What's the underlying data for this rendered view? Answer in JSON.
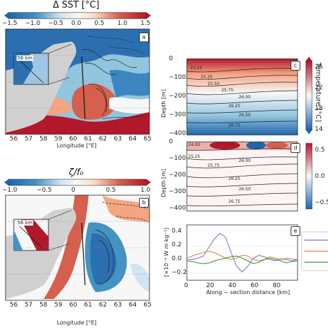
{
  "panel_a": {
    "colorbar_title": "Δ SST [°C]",
    "colorbar_ticks": [
      "−1.5",
      "−1.0",
      "−0.5",
      "0.0",
      "0.5",
      "1.0",
      "1.5"
    ],
    "label": "a",
    "inset_label": "56 km",
    "x_ticks": [
      "56",
      "57",
      "58",
      "59",
      "60",
      "61",
      "62",
      "63",
      "64",
      "65"
    ],
    "xlabel": "Longitude [°E]"
  },
  "panel_b": {
    "colorbar_title": "ζ/f₀",
    "colorbar_ticks": [
      "−1.0",
      "−0.5",
      "0",
      "0.5",
      "1.0"
    ],
    "label": "b",
    "inset_label": "56 km",
    "x_ticks": [
      "56",
      "57",
      "58",
      "59",
      "60",
      "61",
      "62",
      "63",
      "64",
      "65"
    ],
    "xlabel": "Longitude [°E]"
  },
  "panel_c": {
    "label": "c",
    "ylabel": "Depth [m]",
    "y_ticks": [
      "0",
      "−100",
      "−200",
      "−300",
      "−400"
    ],
    "colorbar_ticks": [
      "26",
      "22",
      "18",
      "14"
    ],
    "colorbar_label": "Temperature [°C]",
    "contour_labels": [
      "25.25",
      "25.50",
      "25.75",
      "26.00",
      "26.25",
      "26.50",
      "26.75",
      "23.25"
    ]
  },
  "panel_d": {
    "label": "d",
    "ylabel": "Depth [m]",
    "y_ticks": [
      "0",
      "−100",
      "−200",
      "−300",
      "−400"
    ],
    "colorbar_ticks": [
      "0.5",
      "0.0",
      "−0.5"
    ],
    "contour_labels": [
      "24.00",
      "25.25",
      "25.75",
      "26.00",
      "26.25",
      "26.50",
      "26.75"
    ]
  },
  "panel_e": {
    "label": "e",
    "ylabel": "[×10⁻⁴ W m kg⁻¹]",
    "y_ticks": [
      "0.4",
      "0.2",
      "0.0",
      "−0.2"
    ],
    "x_ticks": [
      "0",
      "20",
      "40",
      "60",
      "80"
    ],
    "xlabel": "Along − section distance [km]"
  },
  "colors": {
    "red": "#b2182b",
    "blue": "#2166ac",
    "series_blue": "#6f6fd0",
    "series_orange": "#e0803a",
    "series_green": "#3a8a4a"
  },
  "chart_data": {
    "type": "line",
    "x": [
      0,
      5,
      10,
      15,
      20,
      25,
      30,
      35,
      40,
      45,
      50,
      55,
      60,
      65,
      70,
      75,
      80,
      85,
      90,
      95,
      100
    ],
    "xlim": [
      0,
      100
    ],
    "ylim": [
      -0.3,
      0.5
    ],
    "series": [
      {
        "values": [
          0.0,
          0.0,
          0.02,
          0.05,
          0.18,
          0.3,
          0.38,
          0.32,
          0.1,
          -0.1,
          -0.18,
          -0.1,
          0.02,
          0.06,
          0.04,
          0.0,
          -0.02,
          0.01,
          0.0,
          -0.02,
          0.0
        ]
      },
      {
        "values": [
          0.02,
          0.05,
          0.08,
          0.1,
          0.12,
          0.1,
          0.06,
          0.02,
          0.0,
          0.02,
          0.06,
          0.05,
          0.0,
          -0.02,
          0.0,
          0.04,
          0.02,
          0.0,
          0.02,
          0.01,
          0.0
        ]
      },
      {
        "values": [
          -0.02,
          -0.03,
          -0.05,
          -0.06,
          -0.05,
          -0.02,
          0.0,
          0.02,
          0.04,
          0.05,
          0.02,
          -0.02,
          -0.06,
          -0.04,
          0.0,
          0.02,
          0.0,
          -0.02,
          -0.05,
          -0.03,
          -0.02
        ]
      }
    ]
  }
}
